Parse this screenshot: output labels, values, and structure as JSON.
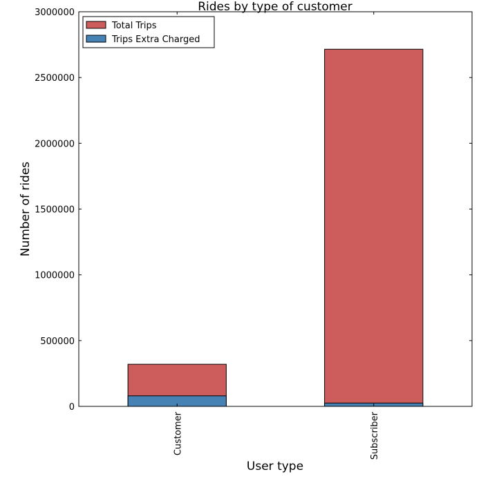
{
  "chart_data": {
    "type": "bar",
    "stacked": true,
    "title": "Rides by type of customer",
    "xlabel": "User type",
    "ylabel": "Number of rides",
    "categories": [
      "Customer",
      "Subscriber"
    ],
    "series": [
      {
        "name": "Total Trips",
        "color": "#cd5c5c",
        "values": [
          320000,
          2715000
        ]
      },
      {
        "name": "Trips Extra Charged",
        "color": "#4682b4",
        "values": [
          80000,
          25000
        ]
      }
    ],
    "ylim": [
      0,
      3000000
    ],
    "yticks": [
      0,
      500000,
      1000000,
      1500000,
      2000000,
      2500000,
      3000000
    ],
    "grid": false,
    "legend_position": "top-left"
  }
}
